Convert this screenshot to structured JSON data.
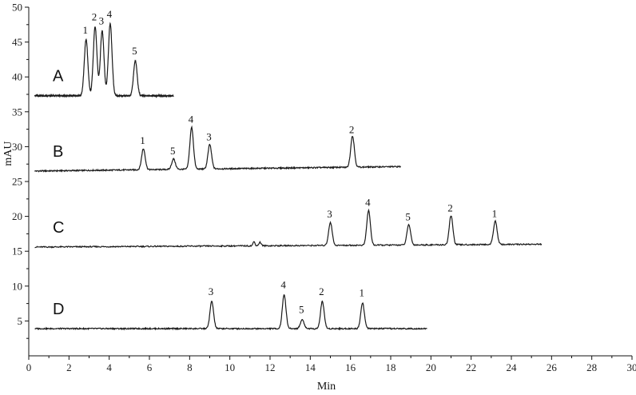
{
  "chart_data": {
    "type": "line",
    "title": "",
    "xlabel": "Min",
    "ylabel": "mAU",
    "xlim": [
      0,
      30
    ],
    "ylim": [
      0,
      50
    ],
    "x_ticks": [
      0,
      2,
      4,
      6,
      8,
      10,
      12,
      14,
      16,
      18,
      20,
      22,
      24,
      26,
      28,
      30
    ],
    "y_ticks": [
      5,
      10,
      15,
      20,
      25,
      30,
      35,
      40,
      45,
      50
    ],
    "grid": false,
    "series": [
      {
        "name": "A",
        "baseline": 37.3,
        "x_range": [
          0.3,
          7.2
        ],
        "peaks": [
          {
            "label": "1",
            "x": 2.85,
            "y": 45.3
          },
          {
            "label": "2",
            "x": 3.3,
            "y": 47.2
          },
          {
            "label": "3",
            "x": 3.65,
            "y": 46.6
          },
          {
            "label": "4",
            "x": 4.05,
            "y": 47.6
          },
          {
            "label": "5",
            "x": 5.3,
            "y": 42.3
          }
        ]
      },
      {
        "name": "B",
        "baseline": 26.5,
        "x_range": [
          0.3,
          18.5
        ],
        "peaks": [
          {
            "label": "1",
            "x": 5.7,
            "y": 29.5
          },
          {
            "label": "5",
            "x": 7.2,
            "y": 28.0
          },
          {
            "label": "4",
            "x": 8.1,
            "y": 32.5
          },
          {
            "label": "3",
            "x": 9.0,
            "y": 30.0
          },
          {
            "label": "2",
            "x": 16.1,
            "y": 31.0
          }
        ]
      },
      {
        "name": "C",
        "baseline": 15.6,
        "x_range": [
          0.3,
          25.5
        ],
        "peaks": [
          {
            "label": "3",
            "x": 15.0,
            "y": 18.9
          },
          {
            "label": "4",
            "x": 16.9,
            "y": 20.6
          },
          {
            "label": "5",
            "x": 18.9,
            "y": 18.5
          },
          {
            "label": "2",
            "x": 21.0,
            "y": 19.8
          },
          {
            "label": "1",
            "x": 23.2,
            "y": 19.0
          }
        ]
      },
      {
        "name": "D",
        "baseline": 3.9,
        "x_range": [
          0.3,
          19.8
        ],
        "peaks": [
          {
            "label": "3",
            "x": 9.1,
            "y": 7.8
          },
          {
            "label": "4",
            "x": 12.7,
            "y": 8.8
          },
          {
            "label": "5",
            "x": 13.6,
            "y": 5.2
          },
          {
            "label": "2",
            "x": 14.6,
            "y": 7.8
          },
          {
            "label": "1",
            "x": 16.6,
            "y": 7.6
          }
        ]
      }
    ]
  }
}
